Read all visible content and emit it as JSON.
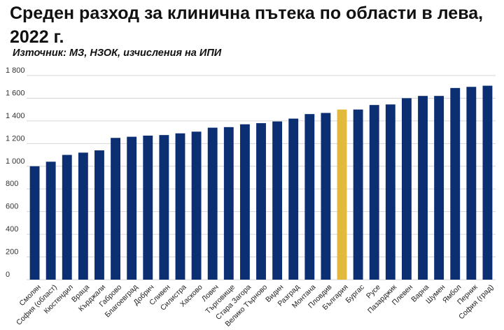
{
  "chart_data": {
    "type": "bar",
    "title": "Среден разход за клинична пътека по области в лева, 2022 г.",
    "subtitle": "Източник: МЗ, НЗОК, изчисления на ИПИ",
    "xlabel": "",
    "ylabel": "",
    "ylim": [
      0,
      1800
    ],
    "yticks": [
      0,
      200,
      400,
      600,
      800,
      1000,
      1200,
      1400,
      1600,
      1800
    ],
    "ytick_labels": [
      "0",
      "200",
      "400",
      "600",
      "800",
      "1 000",
      "1 200",
      "1 400",
      "1 600",
      "1 800"
    ],
    "grid": true,
    "categories": [
      "Смолян",
      "София (област)",
      "Кюстендил",
      "Враца",
      "Кърджали",
      "Габрово",
      "Благоевград",
      "Добрич",
      "Сливен",
      "Силистра",
      "Хасково",
      "Ловеч",
      "Търговище",
      "Стара Загора",
      "Велико Търново",
      "Видин",
      "Разград",
      "Монтана",
      "Пловдив",
      "България",
      "Бургас",
      "Русе",
      "Пазарджик",
      "Плевен",
      "Варна",
      "Шумен",
      "Ямбол",
      "Перник",
      "София (град)"
    ],
    "values": [
      1000,
      1040,
      1100,
      1120,
      1140,
      1250,
      1260,
      1270,
      1275,
      1290,
      1305,
      1340,
      1345,
      1370,
      1380,
      1395,
      1420,
      1460,
      1470,
      1500,
      1500,
      1540,
      1545,
      1600,
      1620,
      1620,
      1690,
      1700,
      1710
    ],
    "highlight": "България",
    "colors": {
      "bar": "#0b2f72",
      "highlight": "#e2b93b",
      "grid": "#d6d6d6"
    }
  }
}
